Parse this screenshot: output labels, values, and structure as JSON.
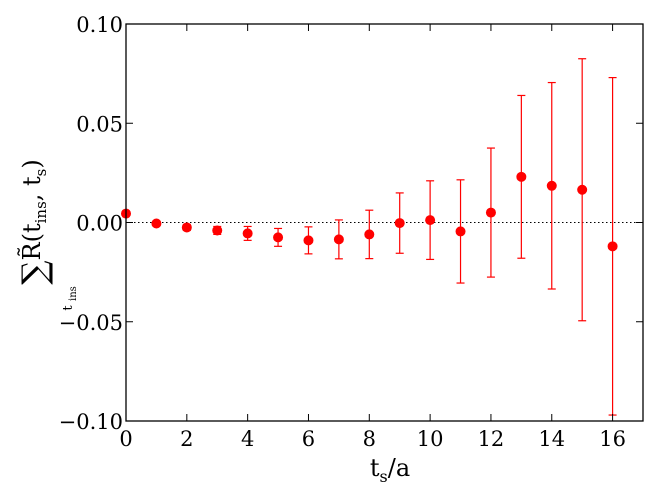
{
  "chart_data": {
    "type": "scatter",
    "xlabel": "t_s/a",
    "ylabel": "∑_t_ins R̃(t_ins, t_s)",
    "xlim": [
      0,
      17
    ],
    "ylim": [
      -0.1,
      0.1
    ],
    "x_ticks": [
      "0",
      "2",
      "4",
      "6",
      "8",
      "10",
      "12",
      "14",
      "16"
    ],
    "y_ticks": [
      "−0.10",
      "−0.05",
      "0.00",
      "0.05",
      "0.10"
    ],
    "reference_line": {
      "y": 0,
      "style": "dotted"
    },
    "grid": false,
    "series": [
      {
        "color": "#ff0000",
        "x": [
          0,
          1,
          2,
          3,
          4,
          5,
          6,
          7,
          8,
          9,
          10,
          11,
          12,
          13,
          14,
          15,
          16
        ],
        "y": [
          0.0045,
          -0.0005,
          -0.0025,
          -0.004,
          -0.0055,
          -0.0075,
          -0.009,
          -0.0085,
          -0.006,
          -0.0003,
          0.0012,
          -0.0045,
          0.005,
          0.023,
          0.0185,
          0.0165,
          -0.012
        ],
        "err": [
          0.0012,
          0.0012,
          0.0015,
          0.002,
          0.0035,
          0.0045,
          0.0068,
          0.0098,
          0.0122,
          0.0152,
          0.0198,
          0.026,
          0.0325,
          0.041,
          0.052,
          0.066,
          0.085
        ]
      }
    ]
  }
}
